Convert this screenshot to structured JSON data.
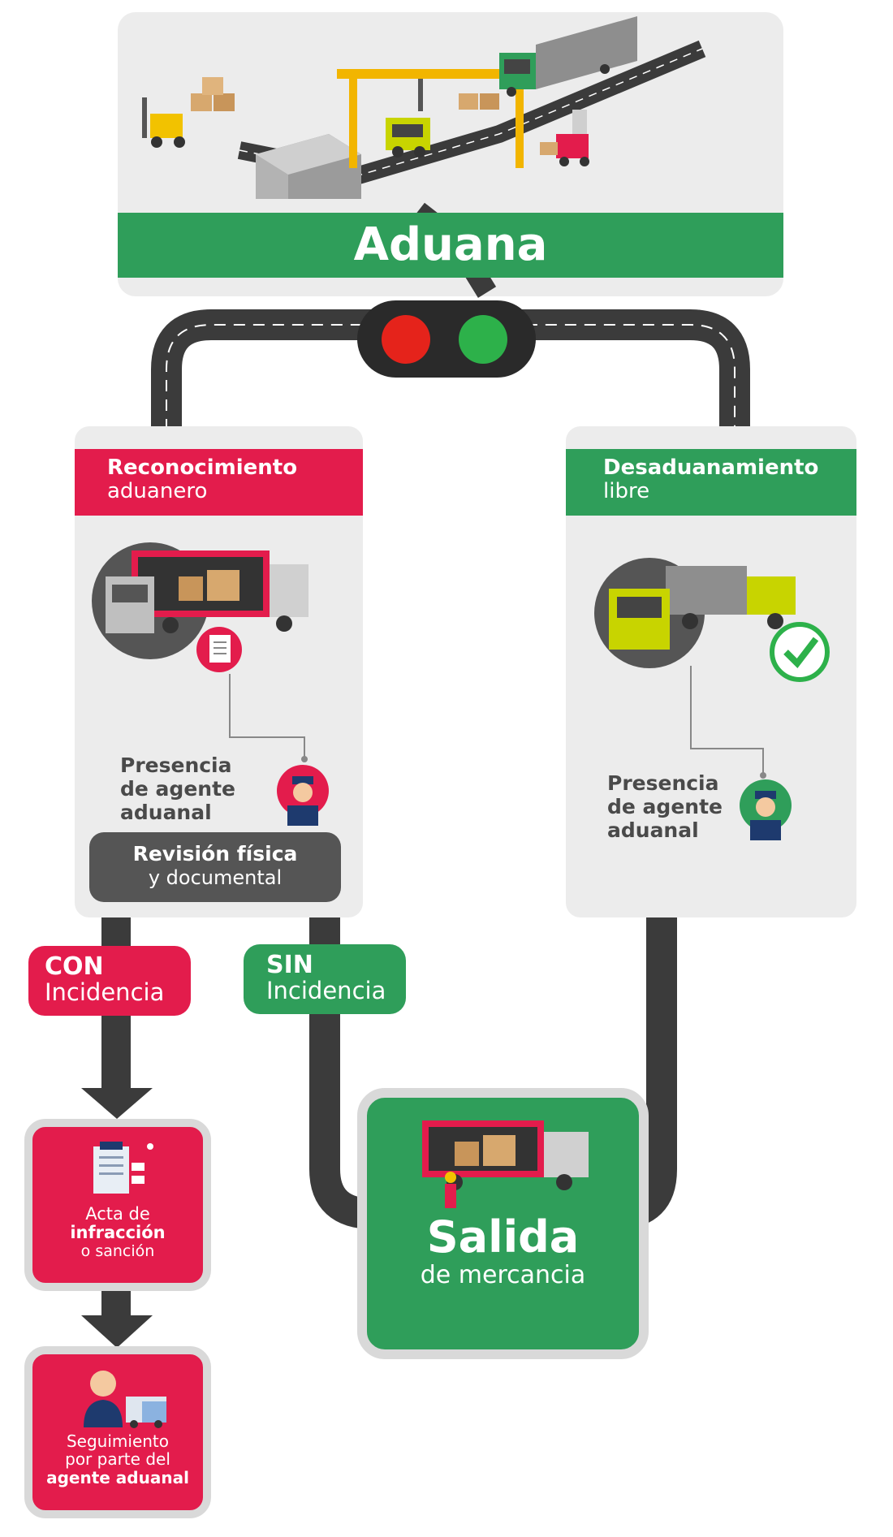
{
  "header": {
    "title": "Aduana"
  },
  "semaforo": {
    "red": "#e5231b",
    "green": "#2db14a"
  },
  "colors": {
    "red": "#e31c4c",
    "green": "#2f9e5a",
    "road": "#3b3b3b",
    "card": "#ececec"
  },
  "left_panel": {
    "title": "Reconocimiento",
    "subtitle": "aduanero",
    "agent_lines": [
      "Presencia",
      "de agente",
      "aduanal"
    ],
    "review_title": "Revisión física",
    "review_sub": "y documental"
  },
  "right_panel": {
    "title": "Desaduanamiento",
    "subtitle": "libre",
    "agent_lines": [
      "Presencia",
      "de agente",
      "aduanal"
    ]
  },
  "con": {
    "title": "CON",
    "sub": "Incidencia"
  },
  "sin": {
    "title": "SIN",
    "sub": "Incidencia"
  },
  "acta": {
    "line1": "Acta de",
    "line2": "infracción",
    "line3": "o sanción"
  },
  "seguimiento": {
    "line1": "Seguimiento",
    "line2": "por parte del",
    "line3": "agente aduanal"
  },
  "salida": {
    "title": "Salida",
    "sub": "de mercancia"
  },
  "icons": [
    "warehouse-icon",
    "gantry-crane-icon",
    "forklift-icon",
    "truck-icon",
    "clipboard-icon",
    "customs-agent-icon",
    "checkmark-icon",
    "worker-icon",
    "document-icon",
    "person-icon"
  ]
}
